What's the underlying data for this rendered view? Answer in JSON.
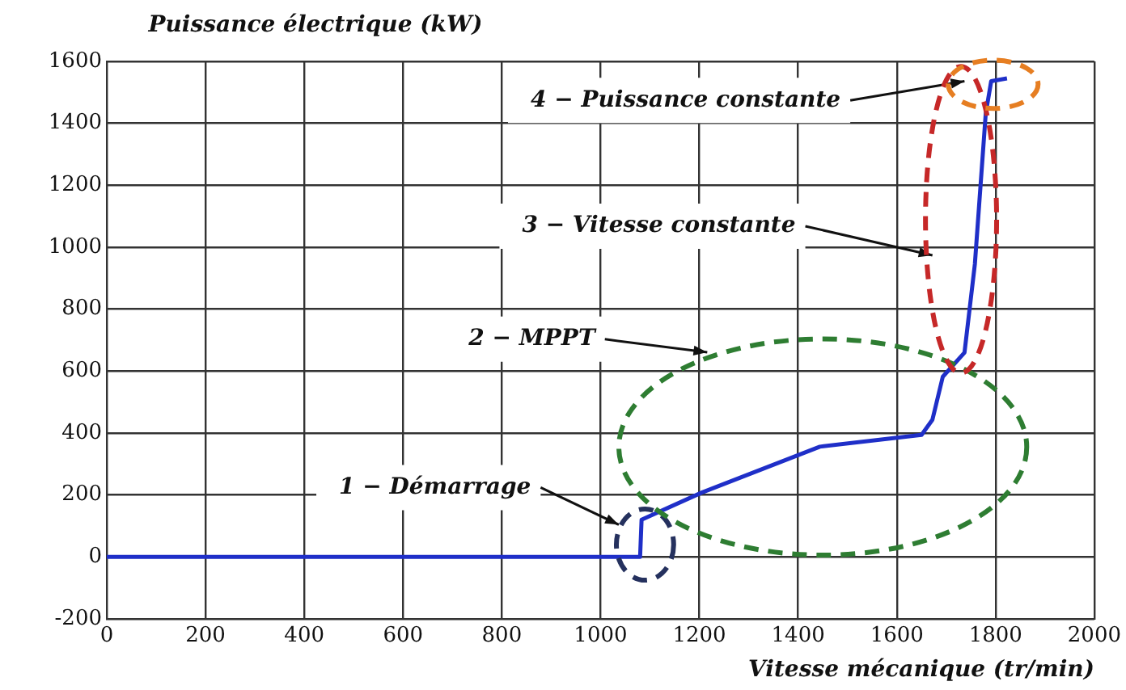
{
  "chart_data": {
    "type": "line",
    "ylabel": "Puissance électrique (kW)",
    "xlabel": "Vitesse mécanique (tr/min)",
    "xlim": [
      0,
      2000
    ],
    "xticks": [
      0,
      200,
      400,
      600,
      800,
      1000,
      1200,
      1400,
      1600,
      1800,
      2000
    ],
    "ylim": [
      -200,
      1600
    ],
    "yticks": [
      -200,
      0,
      200,
      400,
      600,
      800,
      1000,
      1200,
      1400,
      1600
    ],
    "grid": true,
    "legend": false,
    "marker": "none",
    "line_style": "solid",
    "series": [
      {
        "color": "#1f2fc8",
        "x": [
          0,
          1075,
          1080,
          1083,
          1205,
          1444,
          1650,
          1672,
          1693,
          1737,
          1758,
          1780,
          1791,
          1823
        ],
        "values": [
          0,
          0,
          0,
          120,
          208,
          356,
          394,
          443,
          582,
          660,
          946,
          1432,
          1536,
          1545
        ]
      }
    ],
    "annotations": [
      "1 − Démarrage",
      "2 − MPPT",
      "3 − Vitesse constante",
      "4 − Puissance constante"
    ]
  }
}
